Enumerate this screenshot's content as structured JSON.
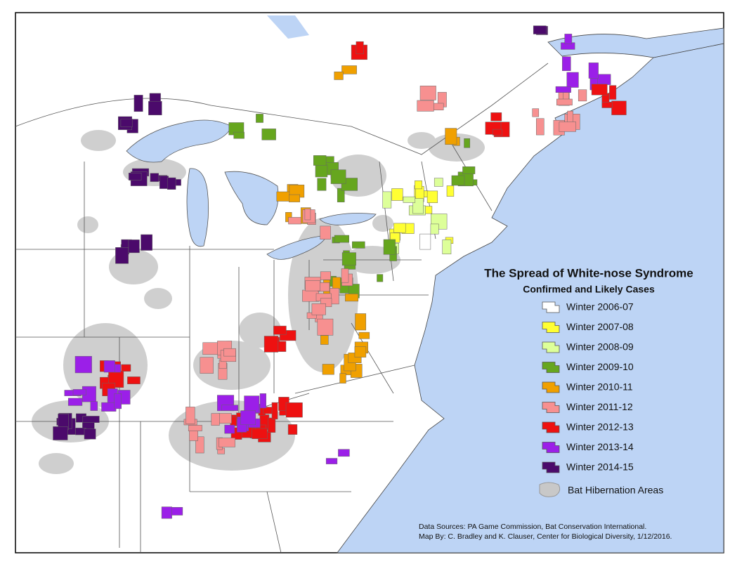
{
  "title": "The Spread of White-nose Syndrome",
  "subtitle": "Confirmed and Likely Cases",
  "legend": [
    {
      "label": "Winter 2006-07",
      "color": "#ffffff"
    },
    {
      "label": "Winter 2007-08",
      "color": "#ffff33"
    },
    {
      "label": "Winter 2008-09",
      "color": "#ddff99"
    },
    {
      "label": "Winter 2009-10",
      "color": "#66a61e"
    },
    {
      "label": "Winter 2010-11",
      "color": "#f0a000"
    },
    {
      "label": "Winter 2011-12",
      "color": "#f79090"
    },
    {
      "label": "Winter 2012-13",
      "color": "#ee1111"
    },
    {
      "label": "Winter 2013-14",
      "color": "#9b1fe8"
    },
    {
      "label": "Winter 2014-15",
      "color": "#4b0a6b"
    }
  ],
  "hibernation_label": "Bat Hibernation Areas",
  "credits": [
    "Data Sources: PA Game Commission, Bat Conservation International.",
    "Map By: C. Bradley and K. Clauser, Center for Biological Diversity, 1/12/2016."
  ]
}
